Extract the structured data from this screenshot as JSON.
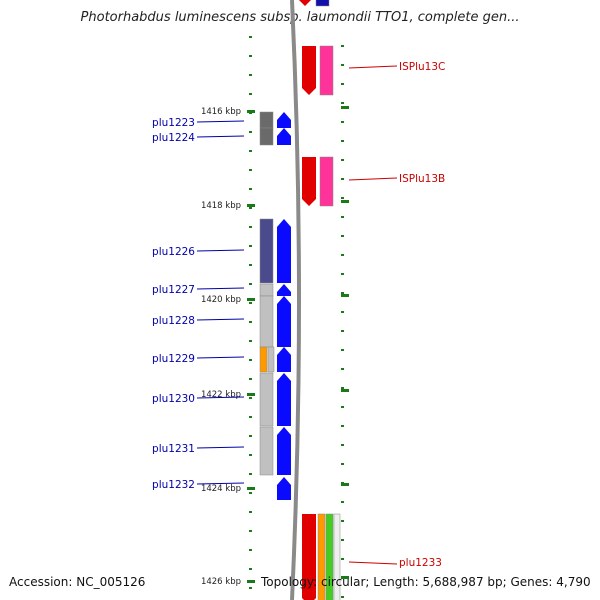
{
  "title": "Photorhabdus luminescens subsp. laumondii TTO1, complete gen...",
  "accession": "Accession: NC_005126",
  "topology": "Topology: circular; Length: 5,688,987 bp; Genes: 4,790",
  "colors": {
    "gene_label": "#0000aa",
    "mobile_label": "#cc0000",
    "tick": "#1a7a1a",
    "backbone": "#8a8a8a",
    "cds_forward": "#0a0aff",
    "cds_reverse": "#e00000",
    "cog_dark": "#4a4a8c",
    "cog_gray": "#c0c0c0",
    "cog_orange": "#ff9900",
    "mobile_pink": "#ff3399"
  },
  "kbp_ticks": [
    {
      "label": "1416 kbp"
    },
    {
      "label": "1418 kbp"
    },
    {
      "label": "1420 kbp"
    },
    {
      "label": "1422 kbp"
    },
    {
      "label": "1424 kbp"
    },
    {
      "label": "1426 kbp"
    }
  ],
  "genes": [
    {
      "name": "plu1223",
      "strand": "+",
      "cog_color": "#6a6a6a"
    },
    {
      "name": "plu1224",
      "strand": "+",
      "cog_color": "#6a6a6a"
    },
    {
      "name": "plu1226",
      "strand": "+",
      "cog_color": "#4a4a8c"
    },
    {
      "name": "plu1227",
      "strand": "+",
      "cog_color": "#c0c0c0"
    },
    {
      "name": "plu1228",
      "strand": "+",
      "cog_color": "#c0c0c0"
    },
    {
      "name": "plu1229",
      "strand": "+",
      "cog_color": "#ff9900"
    },
    {
      "name": "plu1230",
      "strand": "+",
      "cog_color": "#c0c0c0"
    },
    {
      "name": "plu1231",
      "strand": "+",
      "cog_color": "#c0c0c0"
    },
    {
      "name": "plu1232",
      "strand": "+",
      "cog_color": "#ffffff"
    },
    {
      "name": "plu1233",
      "strand": "-",
      "cog_color": "#ff9900"
    }
  ],
  "mobile_elements": [
    {
      "name": "ISPlu13C"
    },
    {
      "name": "ISPlu13B"
    }
  ]
}
